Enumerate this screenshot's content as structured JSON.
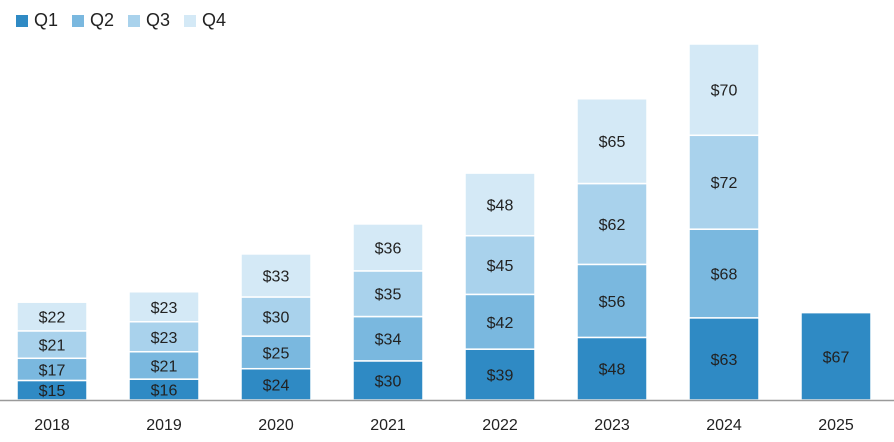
{
  "chart_data": {
    "type": "bar",
    "stacked": true,
    "categories": [
      "2018",
      "2019",
      "2020",
      "2021",
      "2022",
      "2023",
      "2024",
      "2025"
    ],
    "series": [
      {
        "name": "Q1",
        "color": "#2f8ac4",
        "values": [
          15,
          16,
          24,
          30,
          39,
          48,
          63,
          67
        ],
        "labels": [
          "$15",
          "$16",
          "$24",
          "$30",
          "$39",
          "$48",
          "$63",
          "$67"
        ]
      },
      {
        "name": "Q2",
        "color": "#7ab8df",
        "values": [
          17,
          21,
          25,
          34,
          42,
          56,
          68,
          null
        ],
        "labels": [
          "$17",
          "$21",
          "$25",
          "$34",
          "$42",
          "$56",
          "$68",
          ""
        ]
      },
      {
        "name": "Q3",
        "color": "#a9d2ec",
        "values": [
          21,
          23,
          30,
          35,
          45,
          62,
          72,
          null
        ],
        "labels": [
          "$21",
          "$23",
          "$30",
          "$35",
          "$45",
          "$62",
          "$72",
          ""
        ]
      },
      {
        "name": "Q4",
        "color": "#d4e9f6",
        "values": [
          22,
          23,
          33,
          36,
          48,
          65,
          70,
          null
        ],
        "labels": [
          "$22",
          "$23",
          "$33",
          "$36",
          "$48",
          "$65",
          "$70",
          ""
        ]
      }
    ],
    "title": "",
    "xlabel": "",
    "ylabel": "",
    "ylim": [
      0,
      273
    ],
    "grid": false,
    "legend_position": "top-left"
  }
}
